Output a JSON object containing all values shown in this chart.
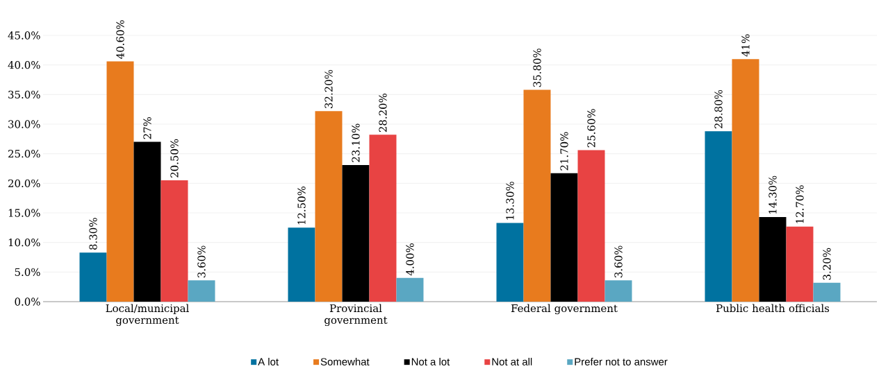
{
  "chart_data": {
    "type": "bar",
    "categories": [
      "Local/municipal government",
      "Provincial government",
      "Federal government",
      "Public health officials"
    ],
    "series": [
      {
        "name": "A lot",
        "color": "#0072a0",
        "values": [
          8.3,
          12.5,
          13.3,
          28.8
        ],
        "value_labels": [
          "8.30%",
          "12.50%",
          "13.30%",
          "28.80%"
        ]
      },
      {
        "name": "Somewhat",
        "color": "#e87b1e",
        "values": [
          40.6,
          32.2,
          35.8,
          41
        ],
        "value_labels": [
          "40.60%",
          "32.20%",
          "35.80%",
          "41%"
        ]
      },
      {
        "name": "Not a lot",
        "color": "#000000",
        "values": [
          27,
          23.1,
          21.7,
          14.3
        ],
        "value_labels": [
          "27%",
          "23.10%",
          "21.70%",
          "14.30%"
        ]
      },
      {
        "name": "Not at all",
        "color": "#e84343",
        "values": [
          20.5,
          28.2,
          25.6,
          12.7
        ],
        "value_labels": [
          "20.50%",
          "28.20%",
          "25.60%",
          "12.70%"
        ]
      },
      {
        "name": "Prefer not to answer",
        "color": "#5aa7c2",
        "values": [
          3.6,
          4,
          3.6,
          3.2
        ],
        "value_labels": [
          "3.60%",
          "4.00%",
          "3.60%",
          "3.20%"
        ]
      }
    ],
    "ylim": [
      0,
      45
    ],
    "yticks": [
      {
        "value": 0,
        "label": "0.0%"
      },
      {
        "value": 5,
        "label": "5.0%"
      },
      {
        "value": 10,
        "label": "10.0%"
      },
      {
        "value": 15,
        "label": "15.0%"
      },
      {
        "value": 20,
        "label": "20.0%"
      },
      {
        "value": 25,
        "label": "25.0%"
      },
      {
        "value": 30,
        "label": "30.0%"
      },
      {
        "value": 35,
        "label": "35.0%"
      },
      {
        "value": 40,
        "label": "40.0%"
      },
      {
        "value": 45,
        "label": "45.0%"
      }
    ],
    "grid": "y",
    "legend": "bottom"
  }
}
